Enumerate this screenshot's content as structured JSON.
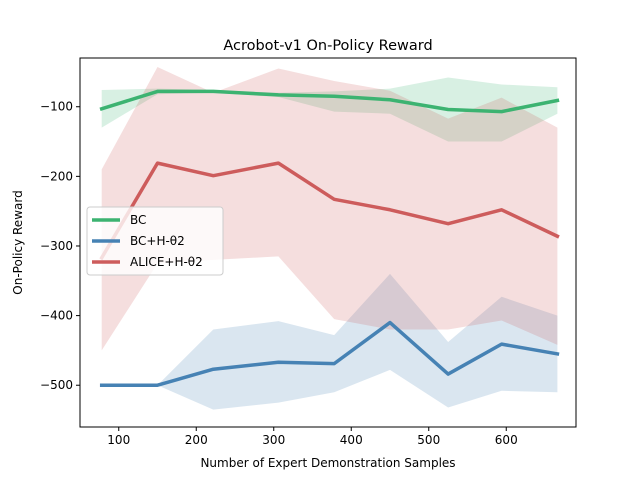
{
  "chart_data": {
    "type": "line",
    "title": "Acrobot-v1 On-Policy Reward",
    "xlabel": "Number of Expert Demonstration Samples",
    "ylabel": "On-Policy Reward",
    "xlim": [
      50,
      690
    ],
    "ylim": [
      -560,
      -30
    ],
    "xticks": [
      100,
      200,
      300,
      400,
      500,
      600
    ],
    "yticks": [
      -500,
      -400,
      -300,
      -200,
      -100
    ],
    "grid": false,
    "legend_position": "center-left",
    "x": [
      78,
      150,
      222,
      306,
      378,
      450,
      525,
      594,
      666
    ],
    "series": [
      {
        "name": "BC",
        "color": "#3cb371",
        "values": [
          -103,
          -78,
          -78,
          -83,
          -85,
          -90,
          -104,
          -107,
          -91
        ],
        "lower": [
          -130,
          -82,
          -80,
          -86,
          -107,
          -110,
          -150,
          -150,
          -110
        ],
        "upper": [
          -76,
          -74,
          -76,
          -80,
          -78,
          -74,
          -58,
          -68,
          -72
        ]
      },
      {
        "name": "BC+H-θ2",
        "color": "#4682b4",
        "values": [
          -500,
          -500,
          -477,
          -467,
          -469,
          -410,
          -484,
          -441,
          -455
        ],
        "lower": [
          -500,
          -500,
          -535,
          -525,
          -510,
          -478,
          -532,
          -508,
          -510
        ],
        "upper": [
          -500,
          -500,
          -420,
          -408,
          -428,
          -340,
          -438,
          -373,
          -400
        ]
      },
      {
        "name": "ALICE+H-θ2",
        "color": "#cd5c5c",
        "values": [
          -317,
          -181,
          -199,
          -181,
          -233,
          -248,
          -268,
          -248,
          -286
        ],
        "lower": [
          -450,
          -325,
          -320,
          -315,
          -405,
          -420,
          -420,
          -407,
          -442
        ],
        "upper": [
          -190,
          -43,
          -80,
          -45,
          -63,
          -77,
          -117,
          -87,
          -130
        ]
      }
    ]
  }
}
